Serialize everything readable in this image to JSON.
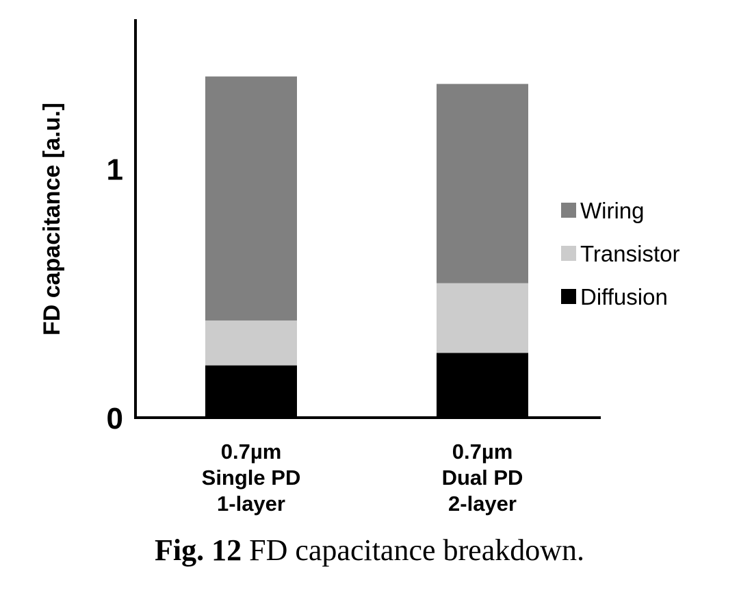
{
  "chart_data": {
    "type": "bar",
    "stacked": true,
    "ylabel": "FD capacitance [a.u.]",
    "ylim": [
      0,
      1.6
    ],
    "yticks": [
      0,
      1
    ],
    "ytick_labels": [
      "0",
      "1"
    ],
    "categories": [
      [
        "0.7µm",
        "Single PD",
        "1-layer"
      ],
      [
        "0.7µm",
        "Dual PD",
        "2-layer"
      ]
    ],
    "series": [
      {
        "name": "Diffusion",
        "values": [
          0.21,
          0.26
        ],
        "color": "#000000"
      },
      {
        "name": "Transistor",
        "values": [
          0.18,
          0.28
        ],
        "color": "#cccccc"
      },
      {
        "name": "Wiring",
        "values": [
          0.98,
          0.8
        ],
        "color": "#808080"
      }
    ],
    "legend_order": [
      "Wiring",
      "Transistor",
      "Diffusion"
    ],
    "legend_position": "right",
    "grid": false
  },
  "caption": {
    "label": "Fig. 12",
    "text": " FD capacitance breakdown."
  }
}
